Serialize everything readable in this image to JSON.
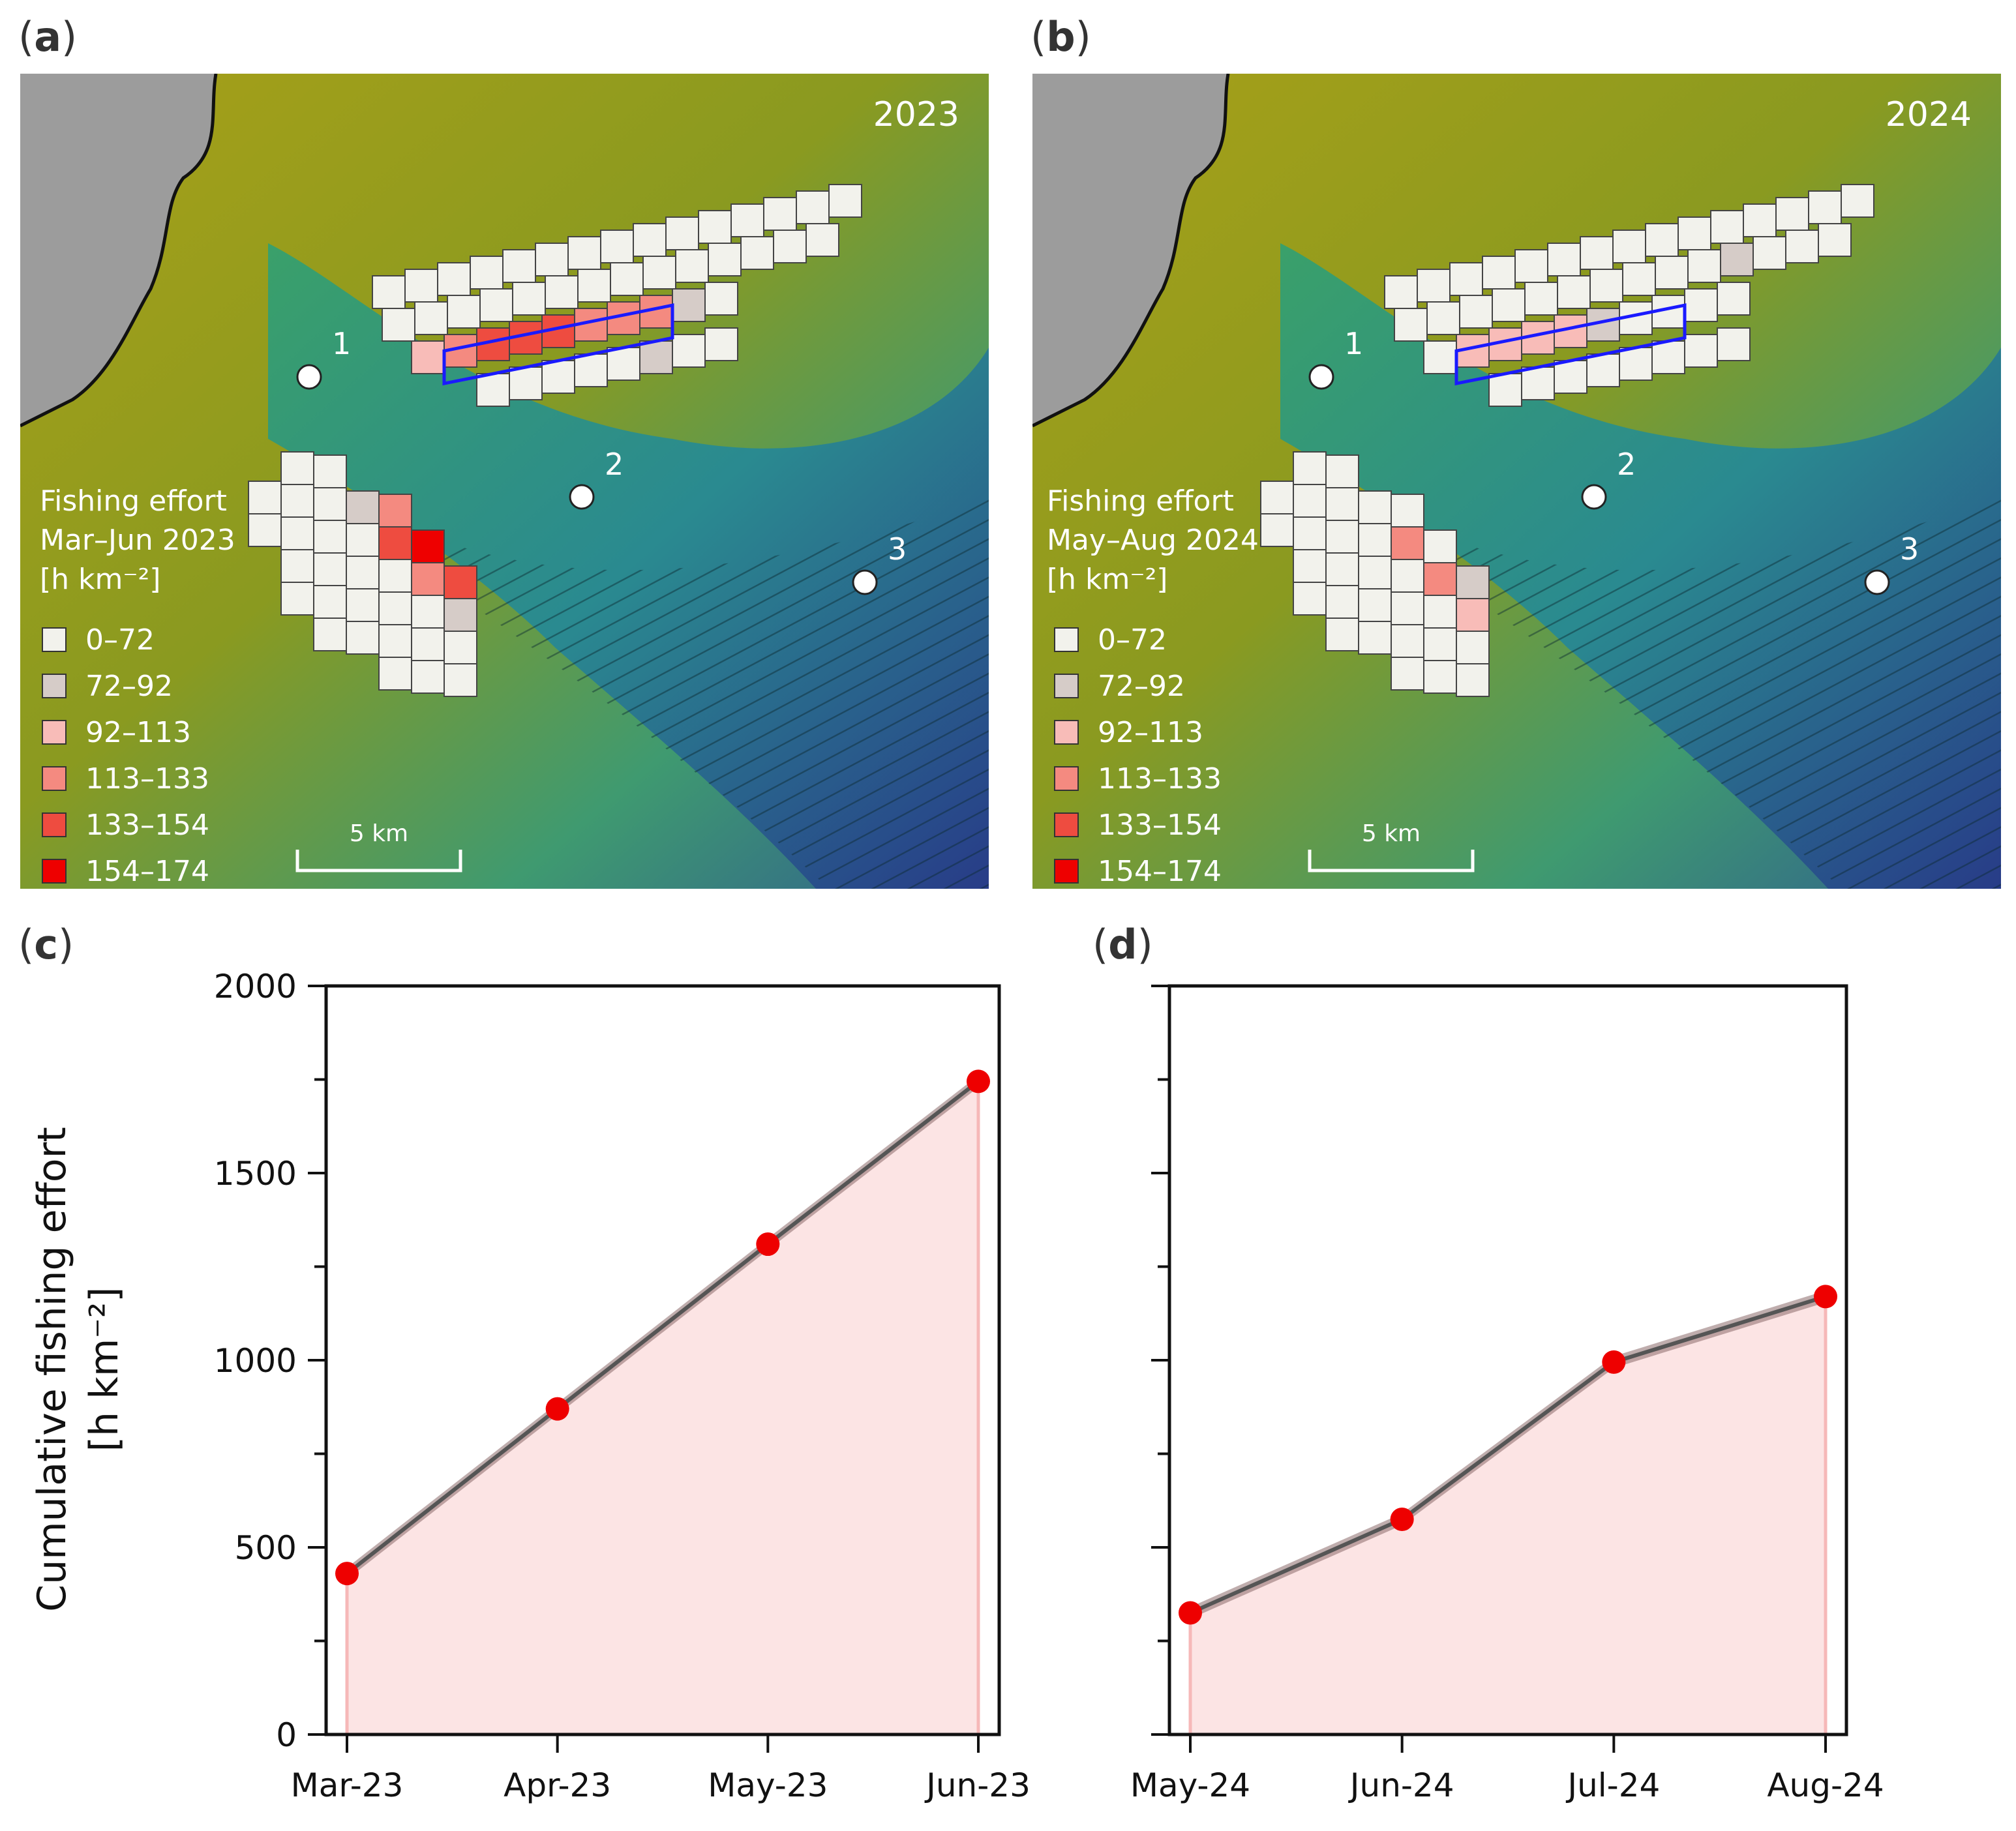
{
  "panel_labels": {
    "a": "a",
    "b": "b",
    "c": "c",
    "d": "d"
  },
  "maps": [
    {
      "year": "2023",
      "legend_title": [
        "Fishing effort",
        "Mar–Jun 2023",
        "[h km⁻²]"
      ],
      "scale_bar": "5 km",
      "site_labels": [
        "1",
        "2",
        "3"
      ]
    },
    {
      "year": "2024",
      "legend_title": [
        "Fishing effort",
        "May–Aug 2024",
        "[h km⁻²]"
      ],
      "scale_bar": "5 km",
      "site_labels": [
        "1",
        "2",
        "3"
      ]
    }
  ],
  "legend": {
    "classes": [
      "0–72",
      "72–92",
      "92–113",
      "113–133",
      "133–154",
      "154–174"
    ],
    "colors": [
      "#f2f2ec",
      "#d6ccc8",
      "#f8bcb8",
      "#f48a80",
      "#ee4c40",
      "#ee0000"
    ]
  },
  "colors": {
    "line": "#555555",
    "band": "#8a6a6a",
    "fill": "#fce4e4",
    "marker": "#ee0000",
    "outline_blue": "#1a1aff",
    "terrain_flat": "#9aa01e",
    "terrain_deep": "#2a3a8a"
  },
  "chart_data": [
    {
      "type": "area",
      "panel": "c",
      "categories": [
        "Mar-23",
        "Apr-23",
        "May-23",
        "Jun-23"
      ],
      "values": [
        430,
        870,
        1310,
        1745
      ],
      "ylabel": [
        "Cumulative fishing effort",
        "[h km⁻²]"
      ],
      "ylim": [
        0,
        2000
      ],
      "yticks": [
        "0",
        "500",
        "1000",
        "1500",
        "2000"
      ]
    },
    {
      "type": "area",
      "panel": "d",
      "categories": [
        "May-24",
        "Jun-24",
        "Jul-24",
        "Aug-24"
      ],
      "values": [
        325,
        575,
        995,
        1170
      ],
      "ylim": [
        0,
        2000
      ]
    }
  ]
}
